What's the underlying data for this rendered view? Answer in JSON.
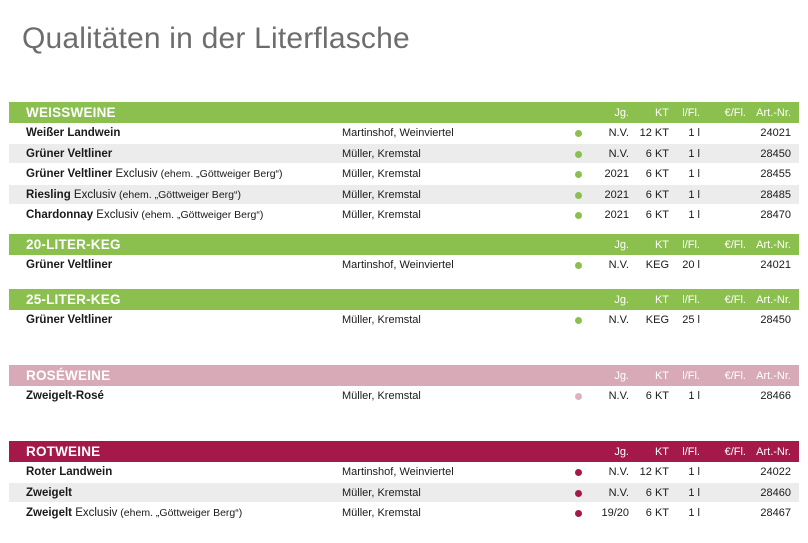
{
  "title": "Qualitäten in der Literflasche",
  "columns": {
    "jg": "Jg.",
    "kt": "KT",
    "lfl": "l/Fl.",
    "eur": "€/Fl.",
    "art": "Art.-Nr."
  },
  "colors": {
    "green": "#8bbf4e",
    "rose": "#d8aab8",
    "red": "#a4194a",
    "shade": "#ececec"
  },
  "sections": [
    {
      "name": "WEISSWEINE",
      "color": "#8bbf4e",
      "dot": "#8bbf4e",
      "rows": [
        {
          "wine": "Weißer Landwein",
          "wine_extra": "",
          "note": "",
          "producer": "Martinshof, Weinviertel",
          "jg": "N.V.",
          "kt": "12 KT",
          "lfl": "1 l",
          "art": "24021"
        },
        {
          "wine": "Grüner Veltliner",
          "wine_extra": "",
          "note": "",
          "producer": "Müller, Kremstal",
          "jg": "N.V.",
          "kt": "6 KT",
          "lfl": "1 l",
          "art": "28450"
        },
        {
          "wine": "Grüner Veltliner",
          "wine_extra": " Exclusiv",
          "note": " (ehem. „Göttweiger Berg“)",
          "producer": "Müller, Kremstal",
          "jg": "2021",
          "kt": "6 KT",
          "lfl": "1 l",
          "art": "28455"
        },
        {
          "wine": "Riesling",
          "wine_extra": " Exclusiv",
          "note": " (ehem. „Göttweiger Berg“)",
          "producer": "Müller, Kremstal",
          "jg": "2021",
          "kt": "6 KT",
          "lfl": "1 l",
          "art": "28485"
        },
        {
          "wine": "Chardonnay",
          "wine_extra": " Exclusiv",
          "note": " (ehem. „Göttweiger Berg“)",
          "producer": "Müller, Kremstal",
          "jg": "2021",
          "kt": "6 KT",
          "lfl": "1 l",
          "art": "28470"
        }
      ]
    },
    {
      "name": "20-LITER-KEG",
      "color": "#8bbf4e",
      "dot": "#8bbf4e",
      "rows": [
        {
          "wine": "Grüner Veltliner",
          "wine_extra": "",
          "note": "",
          "producer": "Martinshof, Weinviertel",
          "jg": "N.V.",
          "kt": "KEG",
          "lfl": "20 l",
          "art": "24021"
        }
      ]
    },
    {
      "name": "25-LITER-KEG",
      "color": "#8bbf4e",
      "dot": "#8bbf4e",
      "rows": [
        {
          "wine": "Grüner Veltliner",
          "wine_extra": "",
          "note": "",
          "producer": "Müller, Kremstal",
          "jg": "N.V.",
          "kt": "KEG",
          "lfl": "25 l",
          "art": "28450"
        }
      ]
    },
    {
      "name": "ROSÉWEINE",
      "color": "#d8aab8",
      "dot": "#dfb0bf",
      "rows": [
        {
          "wine": "Zweigelt-Rosé",
          "wine_extra": "",
          "note": "",
          "producer": "Müller, Kremstal",
          "jg": "N.V.",
          "kt": "6 KT",
          "lfl": "1 l",
          "art": "28466"
        }
      ]
    },
    {
      "name": "ROTWEINE",
      "color": "#a4194a",
      "dot": "#a4194a",
      "rows": [
        {
          "wine": "Roter Landwein",
          "wine_extra": "",
          "note": "",
          "producer": "Martinshof, Weinviertel",
          "jg": "N.V.",
          "kt": "12 KT",
          "lfl": "1 l",
          "art": "24022"
        },
        {
          "wine": "Zweigelt",
          "wine_extra": "",
          "note": "",
          "producer": "Müller, Kremstal",
          "jg": "N.V.",
          "kt": "6 KT",
          "lfl": "1 l",
          "art": "28460"
        },
        {
          "wine": "Zweigelt",
          "wine_extra": " Exclusiv",
          "note": " (ehem. „Göttweiger Berg“)",
          "producer": "Müller, Kremstal",
          "jg": "19/20",
          "kt": "6 KT",
          "lfl": "1 l",
          "art": "28467"
        }
      ]
    }
  ]
}
